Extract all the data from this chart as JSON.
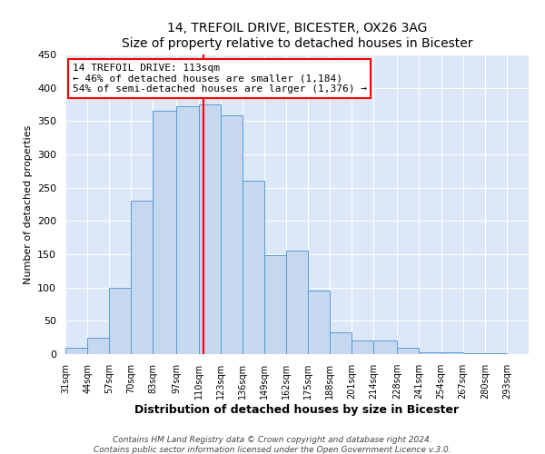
{
  "title": "14, TREFOIL DRIVE, BICESTER, OX26 3AG",
  "subtitle": "Size of property relative to detached houses in Bicester",
  "xlabel": "Distribution of detached houses by size in Bicester",
  "ylabel": "Number of detached properties",
  "bin_labels": [
    "31sqm",
    "44sqm",
    "57sqm",
    "70sqm",
    "83sqm",
    "97sqm",
    "110sqm",
    "123sqm",
    "136sqm",
    "149sqm",
    "162sqm",
    "175sqm",
    "188sqm",
    "201sqm",
    "214sqm",
    "228sqm",
    "241sqm",
    "254sqm",
    "267sqm",
    "280sqm",
    "293sqm"
  ],
  "bin_edges": [
    31,
    44,
    57,
    70,
    83,
    97,
    110,
    123,
    136,
    149,
    162,
    175,
    188,
    201,
    214,
    228,
    241,
    254,
    267,
    280,
    293
  ],
  "bar_heights": [
    10,
    25,
    100,
    230,
    365,
    372,
    375,
    358,
    260,
    148,
    155,
    95,
    33,
    21,
    21,
    10,
    3,
    3,
    1,
    2
  ],
  "bar_color": "#c5d8f0",
  "bar_edge_color": "#5b9bd5",
  "vline_x": 113,
  "vline_color": "red",
  "annotation_title": "14 TREFOIL DRIVE: 113sqm",
  "annotation_line1": "← 46% of detached houses are smaller (1,184)",
  "annotation_line2": "54% of semi-detached houses are larger (1,376) →",
  "annotation_box_color": "white",
  "annotation_box_edge_color": "red",
  "ylim": [
    0,
    450
  ],
  "yticks": [
    0,
    50,
    100,
    150,
    200,
    250,
    300,
    350,
    400,
    450
  ],
  "footer1": "Contains HM Land Registry data © Crown copyright and database right 2024.",
  "footer2": "Contains public sector information licensed under the Open Government Licence v.3.0.",
  "bg_color": "#dce8f8",
  "plot_bg_color": "#dce8f8",
  "outer_bg_color": "#ffffff"
}
